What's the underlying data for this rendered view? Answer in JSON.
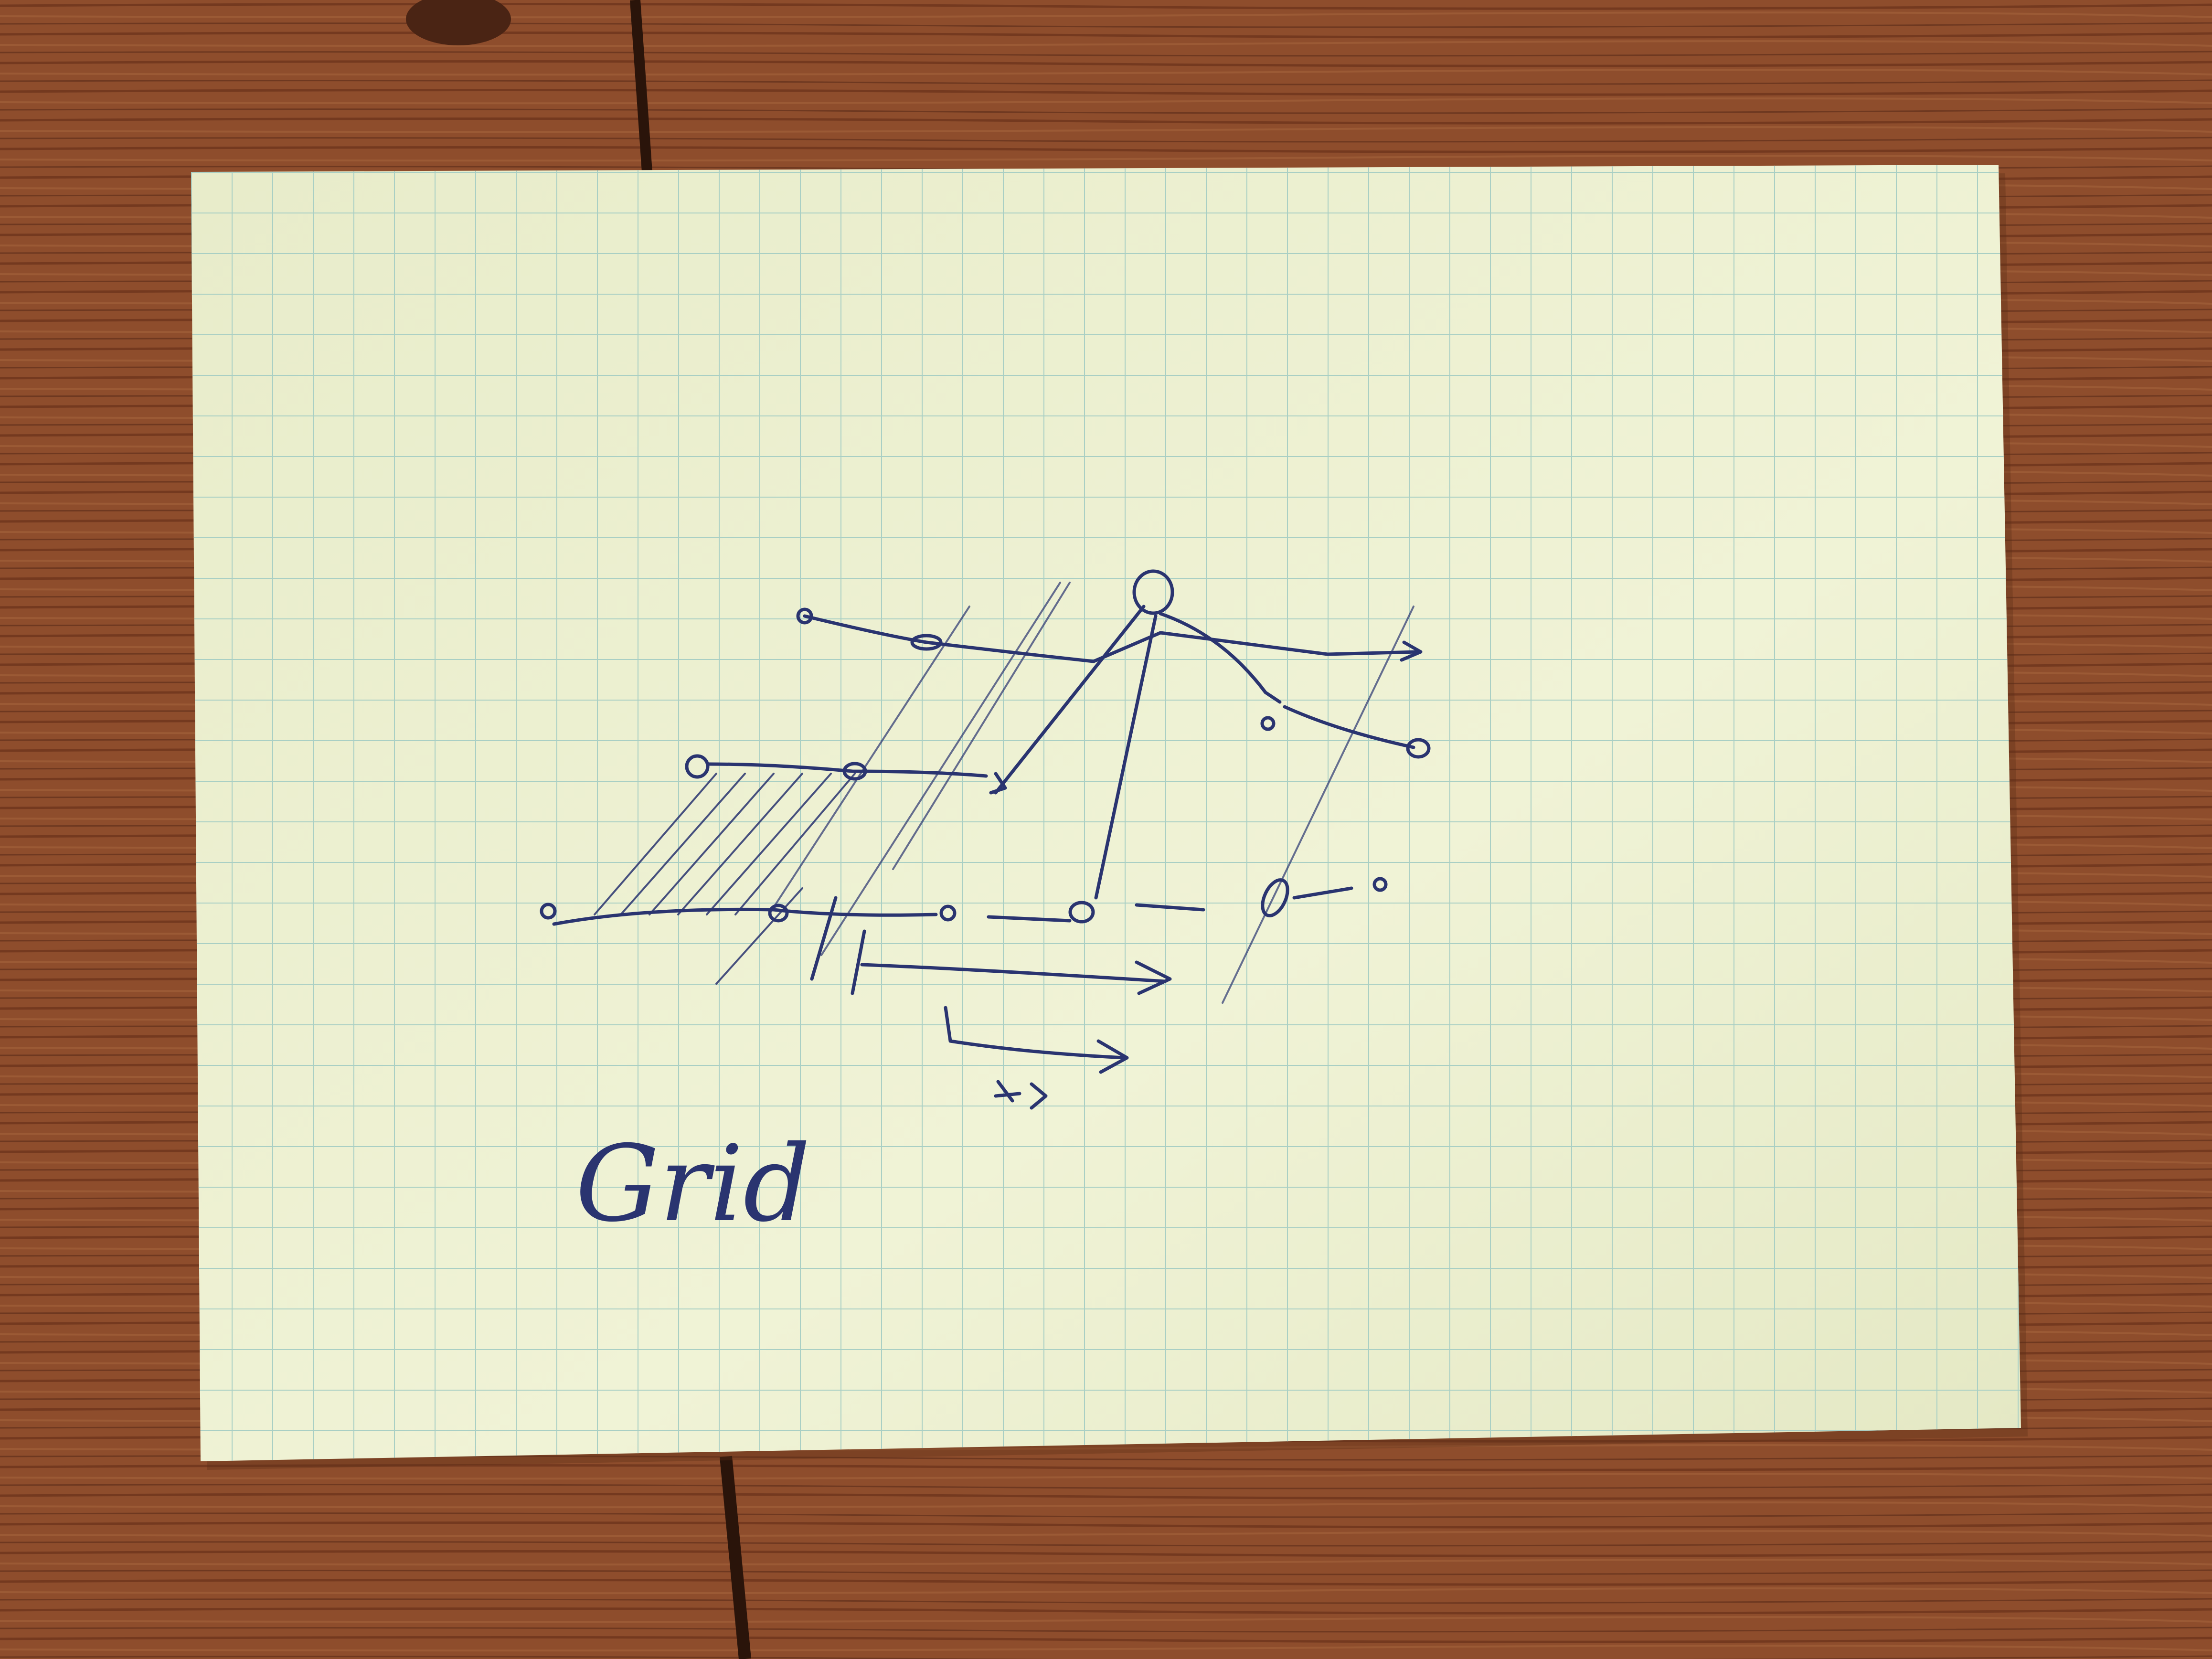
{
  "photo": {
    "caption": "Grid",
    "colors": {
      "wood": "#8a4a2a",
      "wood_grain": "#6e3820",
      "paper": "#eef1d0",
      "grid_line": "#a9cfc4",
      "ink": "#2a3470"
    }
  }
}
